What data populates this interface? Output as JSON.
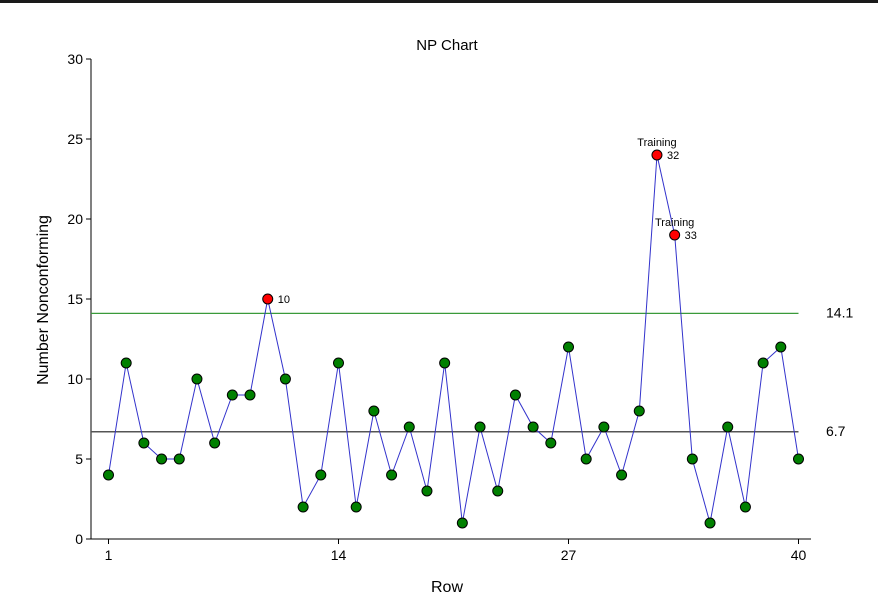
{
  "chart_data": {
    "type": "line",
    "title": "NP Chart",
    "xlabel": "Row",
    "ylabel": "Number Nonconforming",
    "x_ticks": [
      1,
      14,
      27,
      40
    ],
    "y_ticks": [
      0,
      5,
      10,
      15,
      20,
      25,
      30
    ],
    "xlim": [
      1,
      40
    ],
    "ylim": [
      0,
      30
    ],
    "values": [
      4,
      11,
      6,
      5,
      5,
      10,
      6,
      9,
      9,
      15,
      10,
      2,
      4,
      11,
      2,
      8,
      4,
      7,
      3,
      11,
      1,
      7,
      3,
      9,
      7,
      6,
      12,
      5,
      7,
      4,
      8,
      24,
      19,
      5,
      1,
      7,
      2,
      11,
      12,
      5
    ],
    "upper_control_limit": 14.1,
    "upper_control_limit_label": "14.1",
    "center_line": 6.7,
    "center_line_label": "6.7",
    "out_of_control": [
      {
        "row": 10,
        "label": "10",
        "note": ""
      },
      {
        "row": 32,
        "label": "32",
        "note": "Training"
      },
      {
        "row": 33,
        "label": "33",
        "note": "Training"
      }
    ],
    "colors": {
      "series_line": "#3333cc",
      "point_in_control": "#008000",
      "point_out_of_control": "#ff0000",
      "ucl_line": "#3a9a3a",
      "center_line": "#555555"
    },
    "grid": false
  }
}
